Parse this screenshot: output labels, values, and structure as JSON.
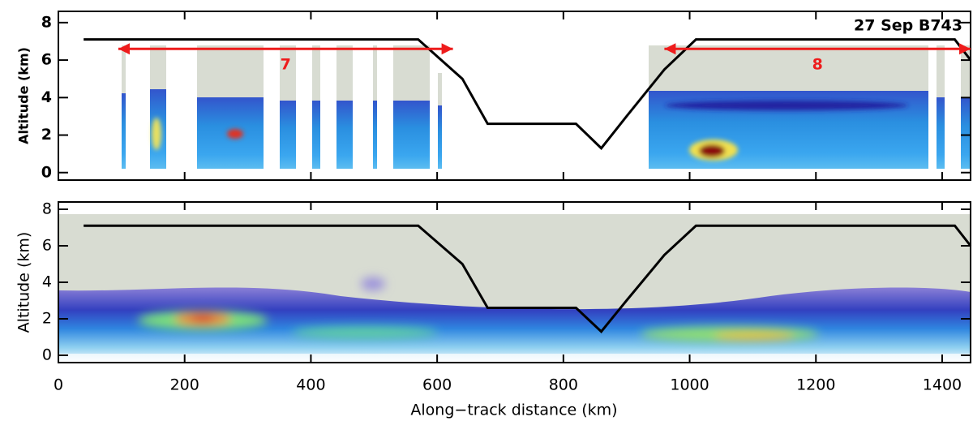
{
  "chart_data": [
    {
      "type": "line",
      "ylabel": "Altitude (km)",
      "annotation": "27 Sep B743",
      "xlim": [
        0,
        1445
      ],
      "ylim": [
        -0.4,
        8.6
      ],
      "yticks": [
        0,
        2,
        4,
        6,
        8
      ],
      "x": [
        40,
        570,
        600,
        640,
        680,
        820,
        860,
        900,
        960,
        1010,
        1420,
        1445
      ],
      "series": [
        {
          "color": "#000000",
          "values": [
            7.1,
            7.1,
            6.2,
            5.0,
            2.6,
            2.6,
            1.3,
            3.0,
            5.5,
            7.1,
            7.1,
            6.0
          ]
        }
      ],
      "arrows": [
        {
          "label": "7",
          "x": [
            95,
            625
          ],
          "y": 6.6,
          "color": "#ee1c1c"
        },
        {
          "label": "8",
          "x": [
            960,
            1445
          ],
          "y": 6.6,
          "color": "#ee1c1c"
        }
      ]
    },
    {
      "type": "line",
      "ylabel": "Altitude (km)",
      "xlabel": "Along−track distance (km)",
      "xlim": [
        0,
        1445
      ],
      "ylim": [
        -0.4,
        8.4
      ],
      "yticks": [
        0,
        2,
        4,
        6,
        8
      ],
      "xticks": [
        0,
        200,
        400,
        600,
        800,
        1000,
        1200,
        1400
      ],
      "x": [
        40,
        570,
        600,
        640,
        680,
        820,
        860,
        900,
        960,
        1010,
        1420,
        1445
      ],
      "series": [
        {
          "color": "#000000",
          "values": [
            7.1,
            7.1,
            6.2,
            5.0,
            2.6,
            2.6,
            1.3,
            3.0,
            5.5,
            7.1,
            7.1,
            6.0
          ]
        }
      ]
    }
  ]
}
